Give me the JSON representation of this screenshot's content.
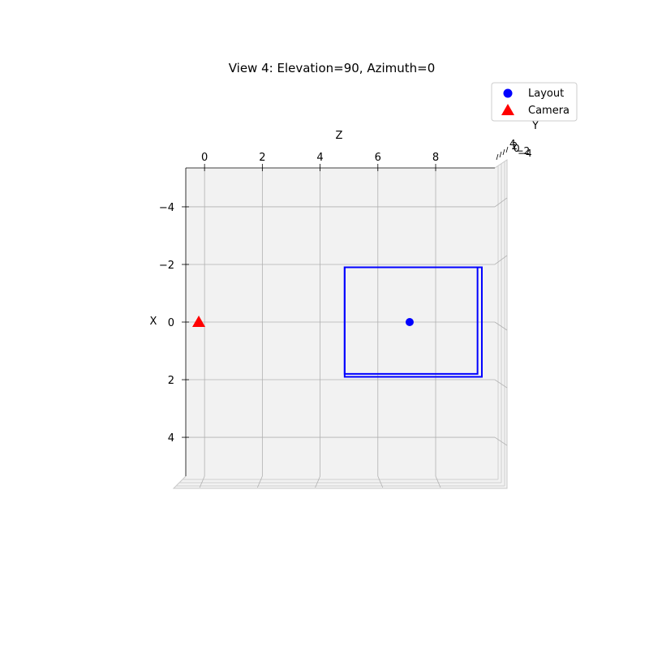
{
  "chart_data": {
    "type": "scatter",
    "projection": "3d",
    "title": "View 4: Elevation=90, Azimuth=0",
    "view": {
      "elevation": 90,
      "azimuth": 0
    },
    "axes": {
      "z": {
        "label": "Z",
        "ticks": [
          "0",
          "2",
          "4",
          "6",
          "8"
        ],
        "range": [
          -0.65,
          10.05
        ]
      },
      "x": {
        "label": "X",
        "ticks": [
          "−4",
          "−2",
          "0",
          "2",
          "4"
        ],
        "range": [
          -5.35,
          5.35
        ]
      },
      "y": {
        "label": "Y",
        "ticks": [
          "4",
          "2",
          "0",
          "−2",
          "−4"
        ]
      }
    },
    "grid": true,
    "series": [
      {
        "name": "Layout",
        "marker": "circle",
        "color": "#0000ff",
        "points": [
          {
            "z": 7.1,
            "x": 0.0
          }
        ]
      },
      {
        "name": "Camera",
        "marker": "triangle",
        "color": "#ff0000",
        "points": [
          {
            "z": -0.2,
            "x": 0.0
          }
        ]
      }
    ],
    "box_outline": {
      "color": "#0000ff",
      "outer": {
        "z": [
          4.85,
          9.6
        ],
        "x": [
          -1.9,
          1.9
        ]
      },
      "inner": {
        "z": [
          4.85,
          9.45
        ],
        "x": [
          -1.9,
          1.8
        ]
      }
    },
    "legend": {
      "placement": "top-right"
    },
    "colors": {
      "pane": "#f2f2f2",
      "grid": "#b0b0b0",
      "axis": "#000000"
    }
  }
}
